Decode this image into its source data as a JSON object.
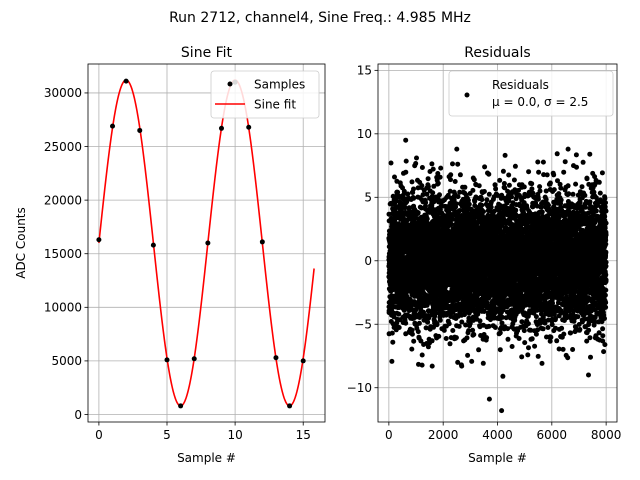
{
  "figure": {
    "suptitle": "Run 2712, channel4, Sine Freq.: 4.985 MHz"
  },
  "chart_data": [
    {
      "type": "line",
      "title": "Sine Fit",
      "xlabel": "Sample #",
      "ylabel": "ADC Counts",
      "xlim": [
        -0.8,
        16.6
      ],
      "ylim": [
        -700,
        32700
      ],
      "xticks": [
        0,
        5,
        10,
        15
      ],
      "yticks": [
        0,
        5000,
        10000,
        15000,
        20000,
        25000,
        30000
      ],
      "grid": true,
      "legend_position": "top-right",
      "series": [
        {
          "name": "Samples",
          "kind": "scatter",
          "color": "#000000",
          "x": [
            0,
            1,
            2,
            3,
            4,
            5,
            6,
            7,
            8,
            9,
            10,
            11,
            12,
            13,
            14,
            15
          ],
          "y": [
            16300,
            26900,
            31100,
            26500,
            15800,
            5100,
            800,
            5200,
            16000,
            26700,
            31000,
            26800,
            16100,
            5300,
            800,
            5000
          ]
        },
        {
          "name": "Sine fit",
          "kind": "line",
          "color": "#ff0000",
          "function": {
            "offset": 16000,
            "amplitude": 15200,
            "period_samples": 8.0,
            "phase_samples": 0.0,
            "x_start": 0,
            "x_end": 15.8
          }
        }
      ]
    },
    {
      "type": "scatter",
      "title": "Residuals",
      "xlabel": "Sample #",
      "ylabel": "",
      "xlim": [
        -400,
        8400
      ],
      "ylim": [
        -12.7,
        15.5
      ],
      "xticks": [
        0,
        2000,
        4000,
        6000,
        8000
      ],
      "yticks": [
        -10,
        -5,
        0,
        5,
        10,
        15
      ],
      "grid": true,
      "legend_position": "top-right",
      "series": [
        {
          "name": "Residuals",
          "legend_line2": "μ = 0.0, σ = 2.5",
          "color": "#000000",
          "count": 8000,
          "mean": 0.0,
          "sigma": 2.5,
          "x_range": [
            0,
            8000
          ],
          "outliers": [
            {
              "x": 3700,
              "y": -10.9
            },
            {
              "x": 4150,
              "y": -11.8
            },
            {
              "x": 620,
              "y": 9.5
            },
            {
              "x": 2500,
              "y": 8.8
            },
            {
              "x": 4200,
              "y": -9.1
            },
            {
              "x": 6600,
              "y": 8.8
            },
            {
              "x": 7350,
              "y": -9.0
            },
            {
              "x": 6800,
              "y": 7.5
            },
            {
              "x": 80,
              "y": 7.7
            }
          ]
        }
      ]
    }
  ]
}
